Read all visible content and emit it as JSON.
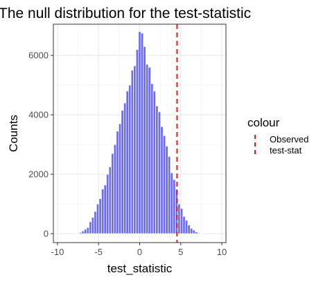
{
  "chart_data": {
    "type": "bar",
    "title": "The null distribution for the test-statistic",
    "xlabel": "test_statistic",
    "ylabel": "Counts",
    "xlim": [
      -10.5,
      10.5
    ],
    "ylim": [
      -300,
      7050
    ],
    "x_ticks": [
      {
        "value": -10,
        "label": "-10"
      },
      {
        "value": -5,
        "label": "-5"
      },
      {
        "value": 0,
        "label": "0"
      },
      {
        "value": 5,
        "label": "5"
      },
      {
        "value": 10,
        "label": "10"
      }
    ],
    "y_ticks": [
      {
        "value": 0,
        "label": "0"
      },
      {
        "value": 2000,
        "label": "2000"
      },
      {
        "value": 4000,
        "label": "4000"
      },
      {
        "value": 6000,
        "label": "6000"
      }
    ],
    "grid": true,
    "bar_color": "#6B6BF5",
    "bin_width": 0.3,
    "series": [
      {
        "x": [
          -7.5,
          -7.2,
          -6.9,
          -6.6,
          -6.3,
          -6.0,
          -5.7,
          -5.4,
          -5.1,
          -4.8,
          -4.5,
          -4.2,
          -3.9,
          -3.6,
          -3.3,
          -3.0,
          -2.7,
          -2.4,
          -2.1,
          -1.8,
          -1.5,
          -1.2,
          -0.9,
          -0.6,
          -0.3,
          0.0,
          0.3,
          0.6,
          0.9,
          1.2,
          1.5,
          1.8,
          2.1,
          2.4,
          2.7,
          3.0,
          3.3,
          3.6,
          3.9,
          4.2,
          4.5,
          4.8,
          5.1,
          5.4,
          5.7,
          6.0,
          6.3,
          6.6,
          6.9,
          7.2,
          7.5
        ],
        "values": [
          10,
          40,
          90,
          150,
          210,
          400,
          550,
          750,
          1000,
          1180,
          1500,
          1640,
          2000,
          2250,
          2700,
          3000,
          3450,
          3700,
          4150,
          4400,
          4800,
          5000,
          5500,
          5650,
          6200,
          6800,
          6750,
          6300,
          5700,
          5600,
          5050,
          4800,
          4300,
          4100,
          3600,
          3300,
          2950,
          2600,
          2050,
          1820,
          1500,
          1000,
          850,
          580,
          450,
          290,
          180,
          120,
          60,
          30,
          10
        ]
      }
    ],
    "reference_lines": [
      {
        "name": "Observed test-stat",
        "x": 4.55,
        "color": "#E8141A",
        "style": "dashed"
      }
    ],
    "legend": {
      "title": "colour",
      "position": "right",
      "entries": [
        {
          "label_line1": "Observed",
          "label_line2": "test-stat",
          "color": "#E8141A"
        }
      ]
    }
  }
}
